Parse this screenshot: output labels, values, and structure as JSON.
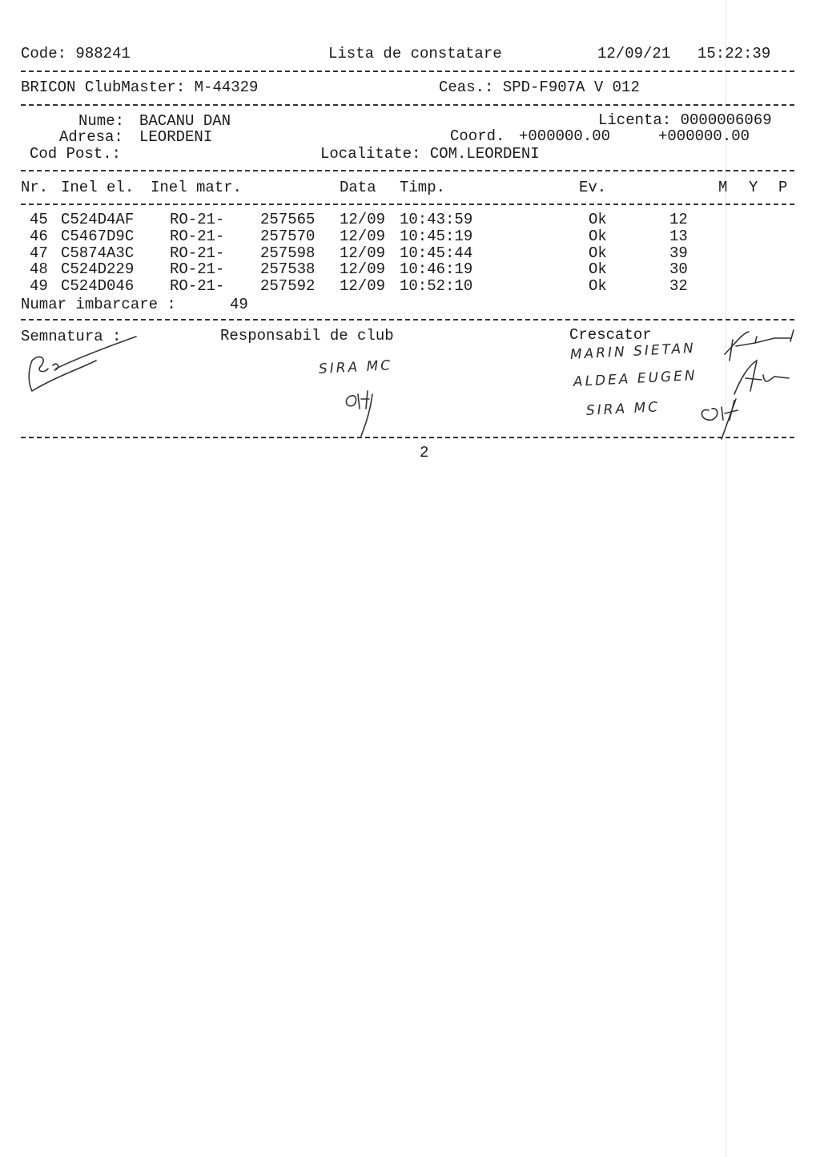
{
  "header": {
    "code": "Code: 988241",
    "title": "Lista de constatare",
    "date": "12/09/21",
    "time": "15:22:39"
  },
  "club": {
    "clubmaster": "BRICON ClubMaster: M-44329",
    "ceas": "Ceas.: SPD-F907A V 012"
  },
  "owner": {
    "nume_label": "Nume:",
    "nume": "BACANU DAN",
    "adresa_label": "Adresa:",
    "adresa": "LEORDENI",
    "codpost_label": "Cod Post.:",
    "licenta": "Licenta: 0000006069",
    "coord_label": "Coord.",
    "coord1": "+000000.00",
    "coord2": "+000000.00",
    "localitate": "Localitate: COM.LEORDENI"
  },
  "table": {
    "headers": {
      "nr": "Nr.",
      "inel_el": "Inel el.",
      "inel_matr": "Inel matr.",
      "data": "Data",
      "timp": "Timp.",
      "ev": "Ev.",
      "m": "M",
      "y": "Y",
      "p": "P"
    },
    "rows": [
      {
        "nr": "45",
        "inel_el": "C524D4AF",
        "prefix": "RO-21-",
        "matr": "257565",
        "data": "12/09",
        "timp": "10:43:59",
        "ev": "Ok",
        "val": "12"
      },
      {
        "nr": "46",
        "inel_el": "C5467D9C",
        "prefix": "RO-21-",
        "matr": "257570",
        "data": "12/09",
        "timp": "10:45:19",
        "ev": "Ok",
        "val": "13"
      },
      {
        "nr": "47",
        "inel_el": "C5874A3C",
        "prefix": "RO-21-",
        "matr": "257598",
        "data": "12/09",
        "timp": "10:45:44",
        "ev": "Ok",
        "val": "39"
      },
      {
        "nr": "48",
        "inel_el": "C524D229",
        "prefix": "RO-21-",
        "matr": "257538",
        "data": "12/09",
        "timp": "10:46:19",
        "ev": "Ok",
        "val": "30"
      },
      {
        "nr": "49",
        "inel_el": "C524D046",
        "prefix": "RO-21-",
        "matr": "257592",
        "data": "12/09",
        "timp": "10:52:10",
        "ev": "Ok",
        "val": "32"
      }
    ],
    "imbarcare_label": "Numar imbarcare :",
    "imbarcare": "49"
  },
  "signatures": {
    "semnatura": "Semnatura :",
    "responsabil": "Responsabil de club",
    "crescator": "Crescator",
    "handwritten": [
      "SIRA MC",
      "MARIN SIETAN",
      "ALDEA EUGEN",
      "SIRA MC"
    ]
  },
  "footer": {
    "page": "2"
  }
}
